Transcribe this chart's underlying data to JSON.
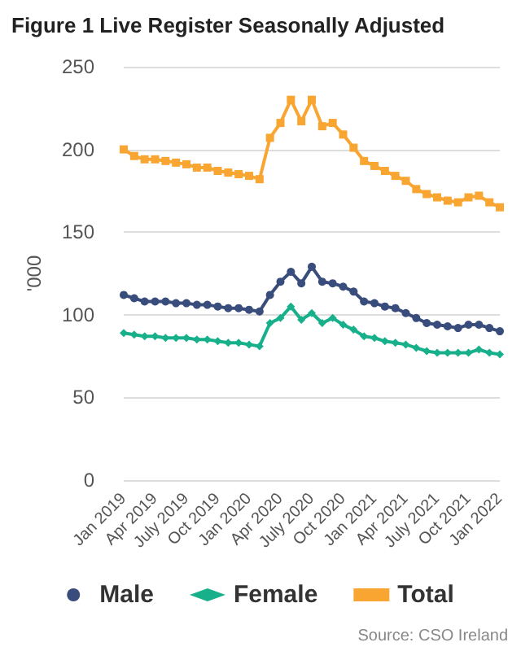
{
  "chart_data": {
    "type": "line",
    "title": "Figure 1 Live Register Seasonally Adjusted",
    "ylabel": "'000",
    "categories": [
      "Jan 2019",
      null,
      null,
      "Apr 2019",
      null,
      null,
      "July 2019",
      null,
      null,
      "Oct 2019",
      null,
      null,
      "Jan 2020",
      null,
      null,
      "Apr 2020",
      null,
      null,
      "July 2020",
      null,
      null,
      "Oct 2020",
      null,
      null,
      "Jan 2021",
      null,
      null,
      "Apr 2021",
      null,
      null,
      "July 2021",
      null,
      null,
      "Oct 2021",
      null,
      null,
      "Jan 2022"
    ],
    "series": [
      {
        "name": "Male",
        "color": "#394d7c",
        "marker": "circle",
        "values": [
          112,
          110,
          108,
          108,
          108,
          107,
          107,
          106,
          106,
          105,
          104,
          104,
          103,
          102,
          112,
          120,
          126,
          119,
          129,
          120,
          119,
          117,
          114,
          108,
          107,
          105,
          104,
          101,
          98,
          95,
          94,
          93,
          92,
          94,
          94,
          92,
          90
        ]
      },
      {
        "name": "Female",
        "color": "#17b08b",
        "marker": "diamond",
        "values": [
          89,
          88,
          87,
          87,
          86,
          86,
          86,
          85,
          85,
          84,
          83,
          83,
          82,
          81,
          95,
          98,
          105,
          97,
          101,
          95,
          98,
          94,
          91,
          87,
          86,
          84,
          83,
          82,
          80,
          78,
          77,
          77,
          77,
          77,
          79,
          77,
          76
        ]
      },
      {
        "name": "Total",
        "color": "#f8a532",
        "marker": "square",
        "values": [
          200,
          196,
          194,
          194,
          193,
          192,
          191,
          189,
          189,
          187,
          186,
          185,
          184,
          182,
          207,
          216,
          230,
          217,
          230,
          214,
          216,
          209,
          201,
          193,
          190,
          187,
          184,
          181,
          176,
          173,
          171,
          169,
          168,
          171,
          172,
          168,
          165
        ]
      }
    ],
    "ylim": [
      0,
      250
    ],
    "yticks": [
      0,
      50,
      100,
      150,
      200,
      250
    ],
    "grid": "y",
    "legend": "bottom",
    "line_style": "solid",
    "annotations": [
      "Source: CSO Ireland"
    ]
  }
}
